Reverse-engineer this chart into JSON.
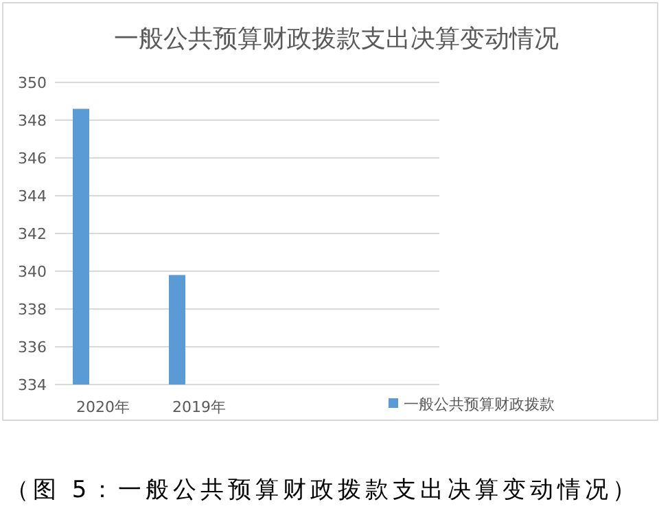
{
  "chart_data": {
    "type": "bar",
    "title": "一般公共预算财政拨款支出决算变动情况",
    "categories": [
      "2020年",
      "2019年",
      null,
      null
    ],
    "series": [
      {
        "name": "一般公共预算财政拨款",
        "color": "#5b9bd5",
        "values": [
          348.6,
          339.8,
          null,
          null
        ]
      }
    ],
    "ylim": [
      334,
      350
    ],
    "yticks": [
      334,
      336,
      338,
      340,
      342,
      344,
      346,
      348,
      350
    ],
    "grid": "y",
    "legend": "bottom right",
    "annotations": [
      "（图 5：一般公共预算财政拨款支出决算变动情况）"
    ]
  }
}
